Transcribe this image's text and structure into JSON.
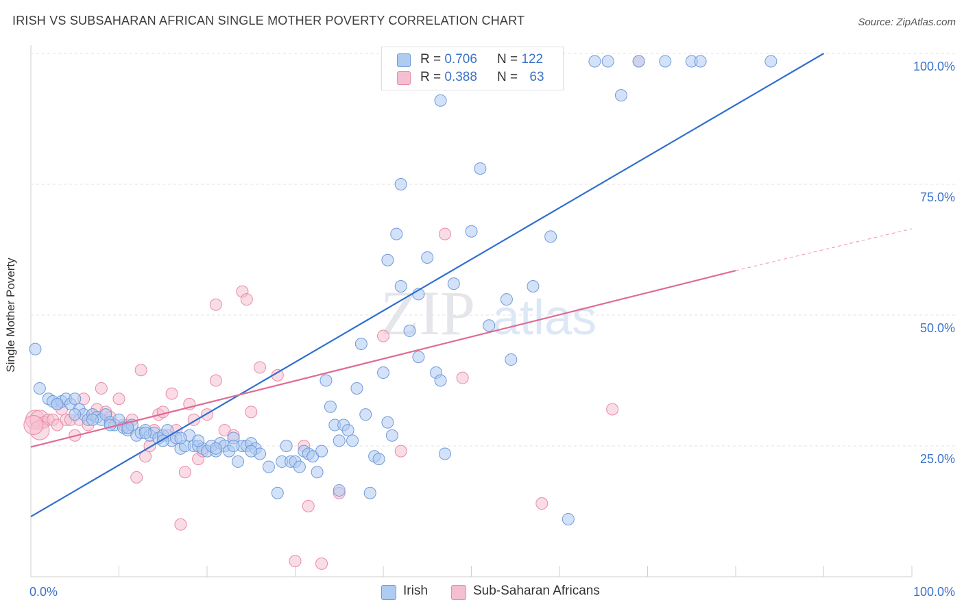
{
  "header": {
    "title": "IRISH VS SUBSAHARAN AFRICAN SINGLE MOTHER POVERTY CORRELATION CHART",
    "source": "Source: ZipAtlas.com"
  },
  "watermark": {
    "zip": "ZIP",
    "atlas": "atlas"
  },
  "legend_top": {
    "rows": [
      {
        "r_label": "R = ",
        "r_value": "0.706",
        "n_label": "N = ",
        "n_value": "122"
      },
      {
        "r_label": "R = ",
        "r_value": "0.388",
        "n_label": "N = ",
        "n_value": "63"
      }
    ]
  },
  "legend_bottom": {
    "items": [
      "Irish",
      "Sub-Saharan Africans"
    ]
  },
  "colors": {
    "irish_fill": "#aecbf2",
    "irish_stroke": "#6f9ad8",
    "irish_line": "#2f6fcf",
    "ssa_fill": "#f6bfd0",
    "ssa_stroke": "#e88aa8",
    "ssa_line": "#e06a94",
    "value_text": "#3a72c8"
  },
  "chart_data": {
    "type": "scatter",
    "title": "IRISH VS SUBSAHARAN AFRICAN SINGLE MOTHER POVERTY CORRELATION CHART",
    "xlabel": "",
    "ylabel": "Single Mother Poverty",
    "xlim": [
      0,
      100
    ],
    "ylim": [
      0,
      100
    ],
    "x_tick_labels": [
      "0.0%",
      "100.0%"
    ],
    "y_tick_labels": [
      "25.0%",
      "50.0%",
      "75.0%",
      "100.0%"
    ],
    "y_ticks": [
      25,
      50,
      75,
      100
    ],
    "grid": true,
    "legend_position": "top-center",
    "series": [
      {
        "name": "Irish",
        "R": 0.706,
        "N": 122,
        "trend": {
          "x": [
            0,
            90
          ],
          "y": [
            11.5,
            100
          ]
        },
        "points": [
          [
            0.5,
            43.5
          ],
          [
            1,
            36
          ],
          [
            2,
            34
          ],
          [
            2.5,
            33.5
          ],
          [
            3,
            33
          ],
          [
            3.5,
            33.5
          ],
          [
            4,
            34
          ],
          [
            4.5,
            33
          ],
          [
            5,
            34
          ],
          [
            5.5,
            32
          ],
          [
            6,
            31
          ],
          [
            6.5,
            30
          ],
          [
            7,
            31
          ],
          [
            7.5,
            30.5
          ],
          [
            8,
            30
          ],
          [
            8.5,
            31
          ],
          [
            9,
            29.5
          ],
          [
            9.5,
            29
          ],
          [
            10,
            30
          ],
          [
            10.5,
            28.5
          ],
          [
            11,
            28
          ],
          [
            11.5,
            29
          ],
          [
            12,
            27
          ],
          [
            12.5,
            27.5
          ],
          [
            13,
            28
          ],
          [
            13.5,
            27
          ],
          [
            14,
            27.5
          ],
          [
            14.5,
            26.5
          ],
          [
            15,
            27
          ],
          [
            15.5,
            28
          ],
          [
            16,
            26
          ],
          [
            16.5,
            26.5
          ],
          [
            17,
            24.5
          ],
          [
            17.5,
            25
          ],
          [
            18,
            27
          ],
          [
            18.5,
            25
          ],
          [
            19,
            25
          ],
          [
            19.5,
            24.5
          ],
          [
            20,
            24
          ],
          [
            20.5,
            25
          ],
          [
            21,
            24
          ],
          [
            21.5,
            25.5
          ],
          [
            22,
            25
          ],
          [
            22.5,
            24
          ],
          [
            23,
            26.5
          ],
          [
            23.5,
            22
          ],
          [
            24,
            25
          ],
          [
            24.5,
            25
          ],
          [
            25,
            25.5
          ],
          [
            25.5,
            24.5
          ],
          [
            26,
            23.5
          ],
          [
            27,
            21
          ],
          [
            28,
            16
          ],
          [
            28.5,
            22
          ],
          [
            29,
            25
          ],
          [
            29.5,
            22
          ],
          [
            30,
            22
          ],
          [
            30.5,
            21
          ],
          [
            31,
            24
          ],
          [
            31.5,
            23.5
          ],
          [
            32,
            23
          ],
          [
            33,
            24
          ],
          [
            32.5,
            20
          ],
          [
            33.5,
            37.5
          ],
          [
            34,
            32.5
          ],
          [
            34.5,
            29
          ],
          [
            35,
            26
          ],
          [
            35.5,
            29
          ],
          [
            35,
            16.5
          ],
          [
            36,
            28
          ],
          [
            36.5,
            26
          ],
          [
            37,
            36
          ],
          [
            37.5,
            44.5
          ],
          [
            38,
            31
          ],
          [
            38.5,
            16
          ],
          [
            39,
            23
          ],
          [
            39.5,
            22.5
          ],
          [
            40,
            39
          ],
          [
            40.5,
            29.5
          ],
          [
            41,
            27
          ],
          [
            40.5,
            60.5
          ],
          [
            41.5,
            65.5
          ],
          [
            42,
            55.5
          ],
          [
            42,
            75
          ],
          [
            43,
            47
          ],
          [
            44,
            42
          ],
          [
            44,
            54
          ],
          [
            45,
            61
          ],
          [
            46,
            39
          ],
          [
            46.5,
            91
          ],
          [
            46.5,
            37.5
          ],
          [
            47,
            23.5
          ],
          [
            48,
            56
          ],
          [
            50,
            66
          ],
          [
            51,
            78
          ],
          [
            52,
            48
          ],
          [
            54,
            53
          ],
          [
            54,
            98.5
          ],
          [
            54.5,
            41.5
          ],
          [
            57,
            55.5
          ],
          [
            59,
            65
          ],
          [
            61,
            11
          ],
          [
            64,
            98.5
          ],
          [
            65.5,
            98.5
          ],
          [
            67,
            92
          ],
          [
            69,
            98.5
          ],
          [
            72,
            98.5
          ],
          [
            75,
            98.5
          ],
          [
            76,
            98.5
          ],
          [
            84,
            98.5
          ],
          [
            3,
            33
          ],
          [
            5,
            31
          ],
          [
            7,
            30
          ],
          [
            9,
            29
          ],
          [
            11,
            28.5
          ],
          [
            13,
            27.5
          ],
          [
            15,
            26
          ],
          [
            17,
            26.5
          ],
          [
            19,
            26
          ],
          [
            21,
            24.5
          ],
          [
            23,
            25
          ],
          [
            25,
            24
          ]
        ]
      },
      {
        "name": "Sub-Saharan Africans",
        "R": 0.388,
        "N": 63,
        "trend": {
          "x": [
            0,
            80
          ],
          "y": [
            24.8,
            58.5
          ]
        },
        "trend_dashed": {
          "x": [
            80,
            100
          ],
          "y": [
            58.5,
            66.5
          ]
        },
        "points": [
          [
            0.5,
            30
          ],
          [
            1,
            30
          ],
          [
            1.5,
            29.5
          ],
          [
            2,
            30
          ],
          [
            2.5,
            30
          ],
          [
            3,
            29
          ],
          [
            3.5,
            32
          ],
          [
            4,
            30
          ],
          [
            4.5,
            30
          ],
          [
            5,
            27
          ],
          [
            5.5,
            30
          ],
          [
            6,
            34
          ],
          [
            6.5,
            29
          ],
          [
            7,
            31
          ],
          [
            7.5,
            32
          ],
          [
            8,
            36
          ],
          [
            8.5,
            31.5
          ],
          [
            9,
            30.5
          ],
          [
            10,
            34
          ],
          [
            10.5,
            29
          ],
          [
            11,
            29
          ],
          [
            11.5,
            30
          ],
          [
            12,
            19
          ],
          [
            12.5,
            39.5
          ],
          [
            13,
            23
          ],
          [
            13.5,
            25
          ],
          [
            14,
            28
          ],
          [
            14.5,
            31
          ],
          [
            15,
            31.5
          ],
          [
            15.5,
            27
          ],
          [
            16,
            35
          ],
          [
            16.5,
            28
          ],
          [
            17,
            10
          ],
          [
            17.5,
            20
          ],
          [
            18,
            33
          ],
          [
            18.5,
            30
          ],
          [
            19,
            22.5
          ],
          [
            19.5,
            24
          ],
          [
            20,
            31
          ],
          [
            21,
            52
          ],
          [
            21,
            37.5
          ],
          [
            22,
            28
          ],
          [
            23,
            27
          ],
          [
            24,
            54.5
          ],
          [
            24.5,
            53
          ],
          [
            25,
            31.5
          ],
          [
            26,
            40
          ],
          [
            28,
            38.5
          ],
          [
            30,
            3
          ],
          [
            31,
            25
          ],
          [
            31.5,
            13.5
          ],
          [
            33,
            2.5
          ],
          [
            35,
            16
          ],
          [
            40,
            46
          ],
          [
            42,
            24
          ],
          [
            47,
            65.5
          ],
          [
            49,
            38
          ],
          [
            58,
            14
          ],
          [
            66,
            32
          ],
          [
            69,
            98.5
          ],
          [
            59,
            98.5
          ],
          [
            1,
            28
          ],
          [
            0.3,
            29
          ]
        ]
      }
    ]
  }
}
